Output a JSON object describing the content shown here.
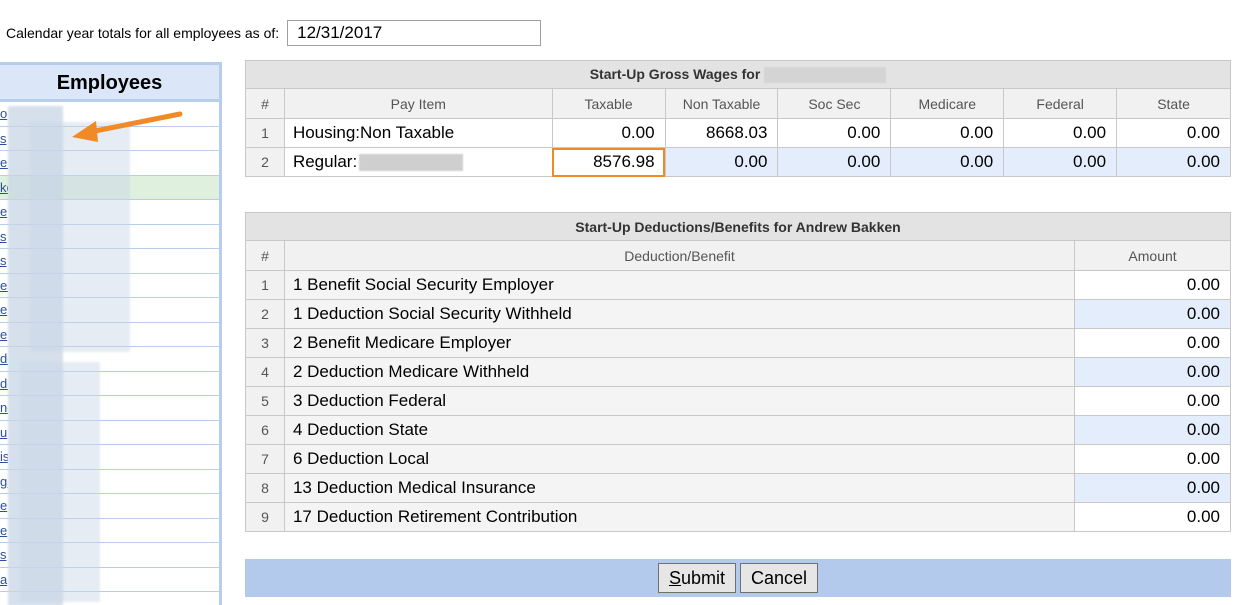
{
  "header": {
    "label": "Calendar year totals for all employees as of:",
    "date_value": "12/31/2017"
  },
  "sidebar": {
    "title": "Employees",
    "rows": [
      "o",
      "s",
      "er",
      "ke",
      "e",
      "s",
      "s",
      "es",
      "e",
      "e",
      "do",
      "de",
      "ne",
      "u",
      "is",
      "gs",
      "e",
      "e",
      "s",
      "a"
    ]
  },
  "wages": {
    "title": "Start-Up Gross Wages for",
    "columns": [
      "#",
      "Pay Item",
      "Taxable",
      "Non Taxable",
      "Soc Sec",
      "Medicare",
      "Federal",
      "State"
    ],
    "rows": [
      {
        "num": "1",
        "item": "Housing:Non Taxable",
        "taxable": "0.00",
        "non_taxable": "8668.03",
        "soc_sec": "0.00",
        "medicare": "0.00",
        "federal": "0.00",
        "state": "0.00"
      },
      {
        "num": "2",
        "item": "Regular:",
        "taxable": "8576.98",
        "non_taxable": "0.00",
        "soc_sec": "0.00",
        "medicare": "0.00",
        "federal": "0.00",
        "state": "0.00"
      }
    ]
  },
  "deductions": {
    "title": "Start-Up Deductions/Benefits for Andrew Bakken",
    "columns": [
      "#",
      "Deduction/Benefit",
      "Amount"
    ],
    "rows": [
      {
        "num": "1",
        "name": "1 Benefit Social Security Employer",
        "amount": "0.00"
      },
      {
        "num": "2",
        "name": "1 Deduction Social Security Withheld",
        "amount": "0.00"
      },
      {
        "num": "3",
        "name": "2 Benefit Medicare Employer",
        "amount": "0.00"
      },
      {
        "num": "4",
        "name": "2 Deduction Medicare Withheld",
        "amount": "0.00"
      },
      {
        "num": "5",
        "name": "3 Deduction Federal",
        "amount": "0.00"
      },
      {
        "num": "6",
        "name": "4 Deduction State",
        "amount": "0.00"
      },
      {
        "num": "7",
        "name": "6 Deduction Local",
        "amount": "0.00"
      },
      {
        "num": "8",
        "name": "13 Deduction Medical Insurance",
        "amount": "0.00"
      },
      {
        "num": "9",
        "name": "17 Deduction Retirement Contribution",
        "amount": "0.00"
      }
    ]
  },
  "actions": {
    "submit_first": "S",
    "submit_rest": "ubmit",
    "cancel": "Cancel"
  },
  "colors": {
    "accent_orange": "#f08a24",
    "footer_bar": "#b4caec",
    "blue_cell": "#e3edfb",
    "sidebar_border": "#b6cdee"
  }
}
